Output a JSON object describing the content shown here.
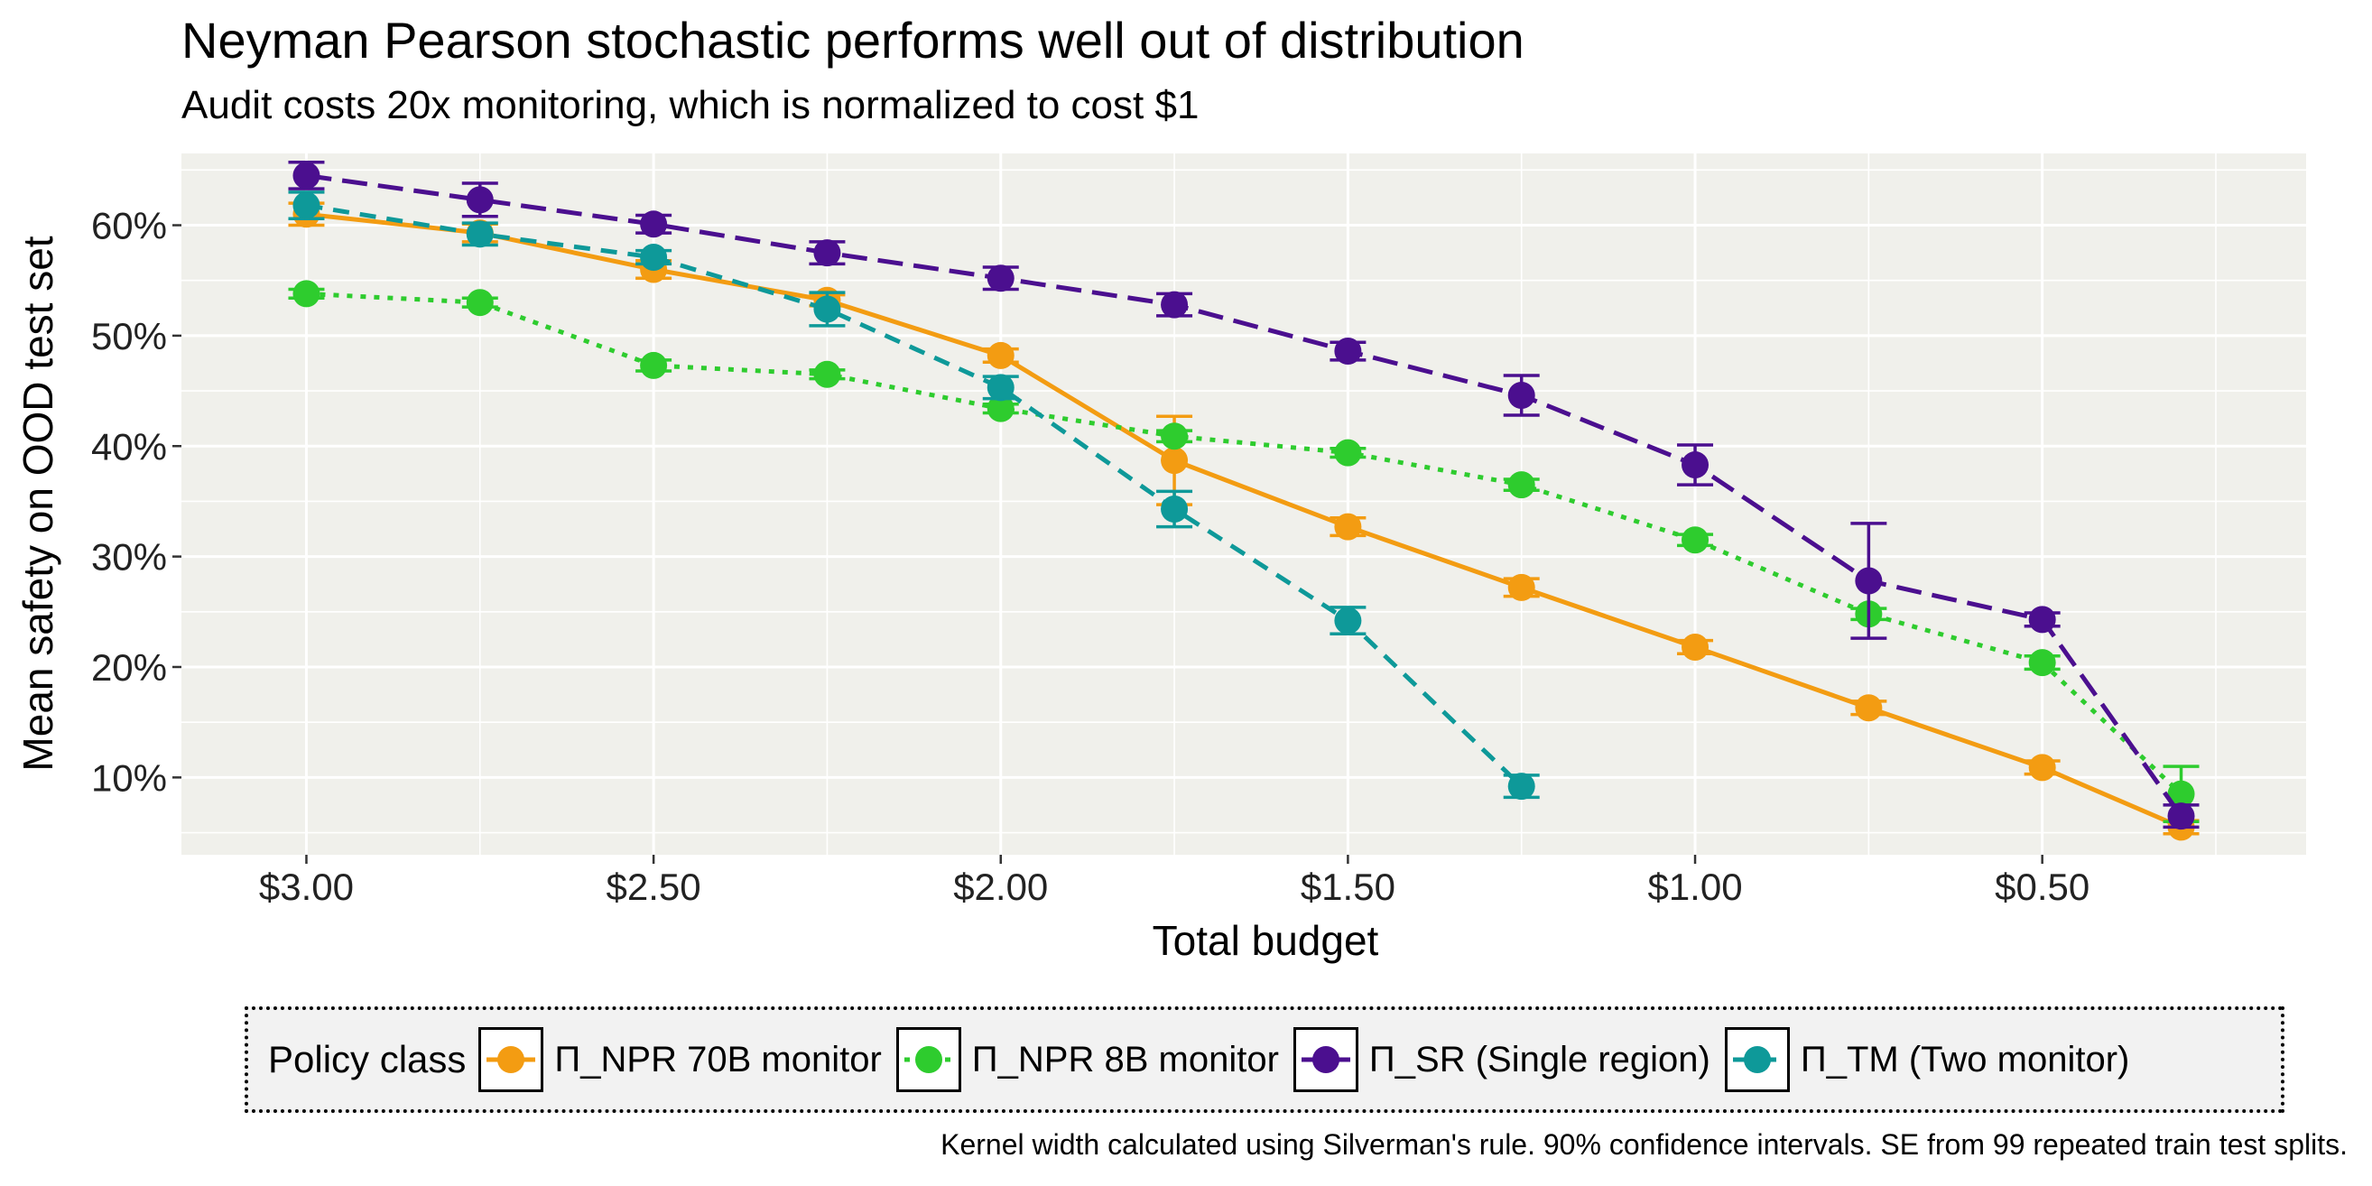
{
  "chart_data": {
    "type": "line",
    "title": "Neyman Pearson stochastic performs well out of distribution",
    "subtitle": "Audit costs 20x monitoring, which is normalized to cost $1",
    "xlabel": "Total budget",
    "ylabel": "Mean safety on OOD test set",
    "caption": "Kernel width calculated using Silverman's rule. 90% confidence intervals. SE from 99 repeated train test splits.",
    "x_axis": {
      "reversed": true,
      "xlim": [
        3.18,
        0.12
      ],
      "ticks": [
        3.0,
        2.5,
        2.0,
        1.5,
        1.0,
        0.5
      ],
      "tick_labels": [
        "$3.00",
        "$2.50",
        "$2.00",
        "$1.50",
        "$1.00",
        "$0.50"
      ]
    },
    "y_axis": {
      "ylim": [
        3,
        66.5
      ],
      "ticks": [
        10,
        20,
        30,
        40,
        50,
        60
      ],
      "tick_labels": [
        "10%",
        "20%",
        "30%",
        "40%",
        "50%",
        "60%"
      ]
    },
    "grid": true,
    "legend": {
      "title": "Policy class",
      "position": "bottom"
    },
    "series": [
      {
        "name": "Π_NPR 70B monitor",
        "color": "#F39C12",
        "dash": "solid",
        "x": [
          3.0,
          2.75,
          2.5,
          2.25,
          2.0,
          1.75,
          1.5,
          1.25,
          1.0,
          0.75,
          0.5,
          0.3
        ],
        "y": [
          61.0,
          59.3,
          56.0,
          53.2,
          48.2,
          38.7,
          32.7,
          27.2,
          21.8,
          16.3,
          10.9,
          5.5
        ],
        "err": [
          1.0,
          0.8,
          0.8,
          0.5,
          0.6,
          4.0,
          0.8,
          0.8,
          0.6,
          0.6,
          0.6,
          0.6
        ]
      },
      {
        "name": "Π_NPR 8B monitor",
        "color": "#2ECC2E",
        "dash": "dotted",
        "x": [
          3.0,
          2.75,
          2.5,
          2.25,
          2.0,
          1.75,
          1.5,
          1.25,
          1.0,
          0.75,
          0.5,
          0.3
        ],
        "y": [
          53.8,
          53.0,
          47.3,
          46.5,
          43.4,
          40.9,
          39.4,
          36.5,
          31.5,
          24.8,
          20.4,
          8.5
        ],
        "err": [
          0.4,
          0.4,
          0.5,
          0.4,
          0.4,
          0.5,
          0.4,
          0.5,
          0.5,
          0.5,
          0.6,
          2.5
        ]
      },
      {
        "name": "Π_SR (Single region)",
        "color": "#4B0F8F",
        "dash": "longdash",
        "x": [
          3.0,
          2.75,
          2.5,
          2.25,
          2.0,
          1.75,
          1.5,
          1.25,
          1.0,
          0.75,
          0.5,
          0.3
        ],
        "y": [
          64.5,
          62.3,
          60.1,
          57.5,
          55.2,
          52.8,
          48.6,
          44.6,
          38.3,
          27.8,
          24.3,
          6.5
        ],
        "err": [
          1.2,
          1.5,
          0.8,
          1.0,
          1.0,
          1.0,
          0.8,
          1.8,
          1.8,
          5.2,
          0.6,
          1.0
        ]
      },
      {
        "name": "Π_TM (Two monitor)",
        "color": "#0E9999",
        "dash": "dashed",
        "x": [
          3.0,
          2.75,
          2.5,
          2.25,
          2.0,
          1.75,
          1.5,
          1.25
        ],
        "y": [
          61.8,
          59.2,
          57.1,
          52.4,
          45.3,
          34.3,
          24.2,
          9.2
        ],
        "err": [
          1.2,
          1.0,
          0.6,
          1.5,
          1.0,
          1.6,
          1.2,
          1.0
        ]
      }
    ]
  }
}
